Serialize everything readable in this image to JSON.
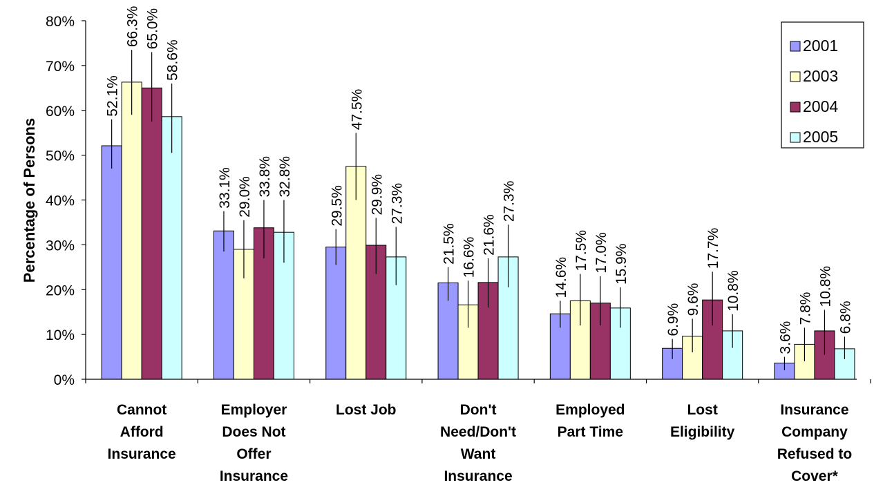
{
  "chart_data": {
    "type": "bar",
    "title": "",
    "xlabel": "",
    "ylabel": "Percentage of Persons",
    "ylim": [
      0,
      80
    ],
    "y_ticks": [
      "0%",
      "10%",
      "20%",
      "30%",
      "40%",
      "50%",
      "60%",
      "70%",
      "80%"
    ],
    "grid": false,
    "legend_position": "top-right",
    "categories": [
      [
        "Cannot",
        "Afford",
        "Insurance"
      ],
      [
        "Employer",
        "Does Not",
        "Offer",
        "Insurance"
      ],
      [
        "Lost Job"
      ],
      [
        "Don't",
        "Need/Don't",
        "Want",
        "Insurance"
      ],
      [
        "Employed",
        "Part Time"
      ],
      [
        "Lost",
        "Eligibility"
      ],
      [
        "Insurance",
        "Company",
        "Refused to",
        "Cover*"
      ]
    ],
    "series": [
      {
        "name": "2001",
        "color": "#9999ff",
        "values": [
          52.1,
          33.1,
          29.5,
          21.5,
          14.6,
          6.9,
          3.6
        ],
        "labels": [
          "52.1%",
          "33.1%",
          "29.5%",
          "21.5%",
          "14.6%",
          "6.9%",
          "3.6%"
        ],
        "error_low": [
          47,
          28.5,
          25.5,
          17.5,
          11.5,
          4.5,
          2
        ],
        "error_high": [
          58,
          37.5,
          33.5,
          25,
          17.5,
          9,
          5
        ]
      },
      {
        "name": "2003",
        "color": "#ffffcc",
        "values": [
          66.3,
          29.0,
          47.5,
          16.6,
          17.5,
          9.6,
          7.8
        ],
        "labels": [
          "66.3%",
          "29.0%",
          "47.5%",
          "16.6%",
          "17.5%",
          "9.6%",
          "7.8%"
        ],
        "error_low": [
          59,
          22.5,
          40,
          11.5,
          12,
          6,
          4
        ],
        "error_high": [
          73.5,
          35.5,
          55,
          22,
          23.5,
          13.5,
          11.5
        ]
      },
      {
        "name": "2004",
        "color": "#993366",
        "values": [
          65.0,
          33.8,
          29.9,
          21.6,
          17.0,
          17.7,
          10.8
        ],
        "labels": [
          "65.0%",
          "33.8%",
          "29.9%",
          "21.6%",
          "17.0%",
          "17.7%",
          "10.8%"
        ],
        "error_low": [
          57.5,
          27,
          23.5,
          16,
          12,
          12,
          5.5
        ],
        "error_high": [
          73,
          40,
          36,
          27,
          23,
          24,
          15.5
        ]
      },
      {
        "name": "2005",
        "color": "#ccffff",
        "values": [
          58.6,
          32.8,
          27.3,
          27.3,
          15.9,
          10.8,
          6.8
        ],
        "labels": [
          "58.6%",
          "32.8%",
          "27.3%",
          "27.3%",
          "15.9%",
          "10.8%",
          "6.8%"
        ],
        "error_low": [
          50.5,
          26,
          21,
          20.5,
          11.5,
          7,
          4.5
        ],
        "error_high": [
          66,
          40,
          34,
          34.5,
          20.5,
          14.5,
          9.5
        ]
      }
    ]
  }
}
